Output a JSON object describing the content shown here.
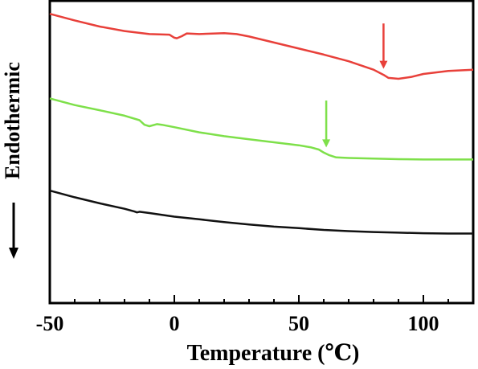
{
  "chart_data": {
    "type": "line",
    "xlabel": "Temperature (℃)",
    "ylabel": "Endothermic",
    "xlim": [
      -50,
      120
    ],
    "ylim": [
      0,
      10
    ],
    "x_ticks": [
      "-50",
      "0",
      "50",
      "100"
    ],
    "x_tick_values": [
      -50,
      0,
      50,
      100
    ],
    "grid": false,
    "legend": "none",
    "series": [
      {
        "color": "#e8403a",
        "x": [
          -50,
          -40,
          -30,
          -20,
          -10,
          -2,
          0,
          1,
          3,
          5,
          10,
          20,
          25,
          30,
          40,
          50,
          60,
          70,
          80,
          84,
          86,
          90,
          95,
          100,
          110,
          120
        ],
        "y": [
          9.57,
          9.35,
          9.15,
          9.0,
          8.9,
          8.88,
          8.78,
          8.76,
          8.83,
          8.92,
          8.9,
          8.93,
          8.9,
          8.82,
          8.62,
          8.42,
          8.22,
          8.0,
          7.72,
          7.55,
          7.45,
          7.42,
          7.48,
          7.58,
          7.68,
          7.72
        ]
      },
      {
        "color": "#7ee04a",
        "x": [
          -50,
          -40,
          -30,
          -20,
          -14,
          -12,
          -10,
          -7,
          -5,
          0,
          10,
          20,
          30,
          40,
          50,
          55,
          58,
          60,
          62,
          65,
          70,
          80,
          90,
          100,
          110,
          120
        ],
        "y": [
          6.77,
          6.55,
          6.38,
          6.2,
          6.05,
          5.9,
          5.85,
          5.92,
          5.9,
          5.82,
          5.65,
          5.52,
          5.42,
          5.32,
          5.22,
          5.15,
          5.08,
          4.98,
          4.9,
          4.82,
          4.8,
          4.78,
          4.76,
          4.75,
          4.75,
          4.75
        ]
      },
      {
        "color": "#111111",
        "x": [
          -50,
          -40,
          -30,
          -20,
          -16,
          -15,
          -14,
          -10,
          0,
          10,
          20,
          30,
          40,
          50,
          60,
          70,
          80,
          90,
          100,
          110,
          120
        ],
        "y": [
          3.72,
          3.5,
          3.3,
          3.12,
          3.03,
          3.0,
          3.02,
          2.98,
          2.86,
          2.77,
          2.68,
          2.6,
          2.53,
          2.48,
          2.42,
          2.38,
          2.35,
          2.33,
          2.31,
          2.3,
          2.3
        ]
      }
    ],
    "annotations": [
      {
        "type": "arrow",
        "color": "#e8403a",
        "x": 84,
        "y_from": 9.25,
        "y_to": 7.75
      },
      {
        "type": "arrow",
        "color": "#7ee04a",
        "x": 61,
        "y_from": 6.7,
        "y_to": 5.15
      }
    ],
    "ylabel_arrow": {
      "direction": "down"
    }
  }
}
